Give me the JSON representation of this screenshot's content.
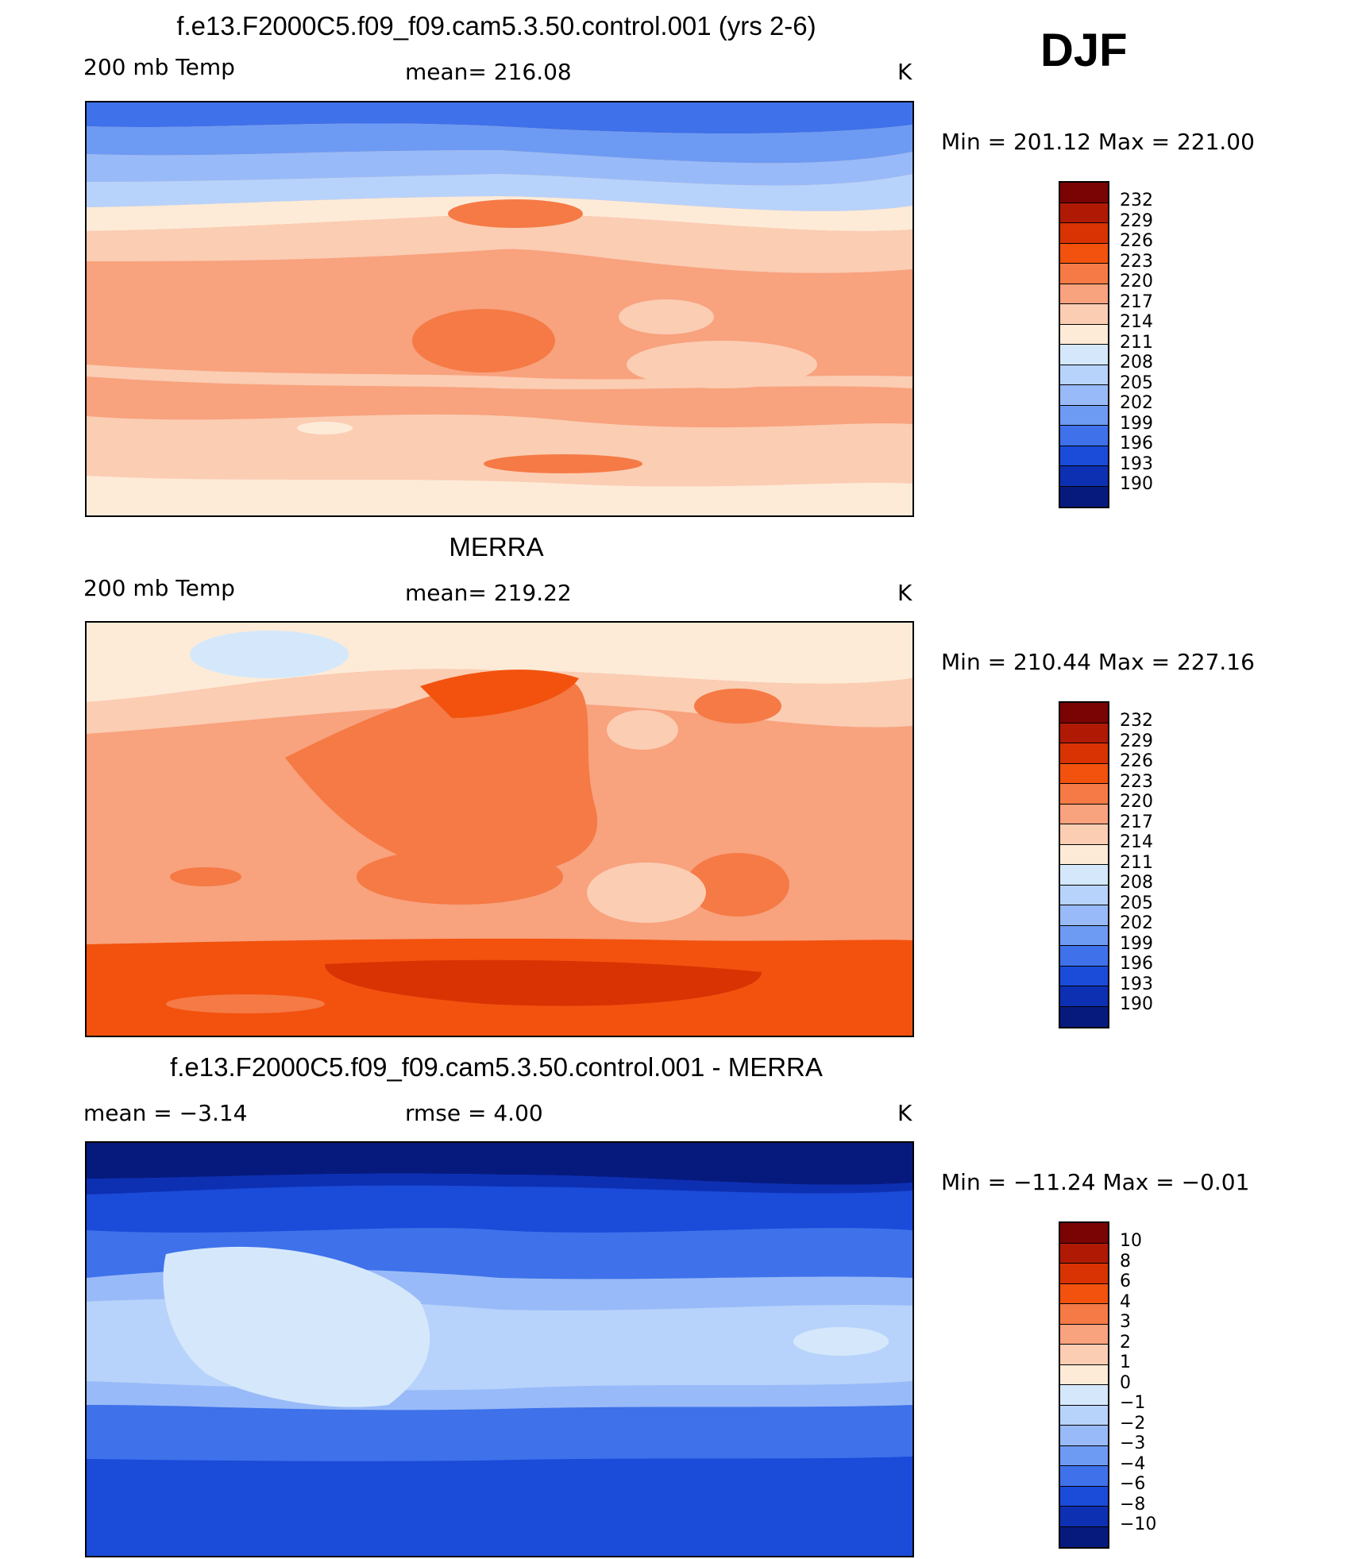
{
  "season": "DJF",
  "units": "K",
  "panels": [
    {
      "title": "f.e13.F2000C5.f09_f09.cam5.3.50.control.001 (yrs 2-6)",
      "left_label": "200 mb Temp",
      "center_label": "mean= 216.08",
      "units": "K",
      "min_max": "Min = 201.12 Max = 221.00",
      "colorbar_levels": [
        "232",
        "229",
        "226",
        "223",
        "220",
        "217",
        "214",
        "211",
        "208",
        "205",
        "202",
        "199",
        "196",
        "193",
        "190"
      ]
    },
    {
      "title": "MERRA",
      "left_label": "200 mb Temp",
      "center_label": "mean= 219.22",
      "units": "K",
      "min_max": "Min = 210.44 Max = 227.16",
      "colorbar_levels": [
        "232",
        "229",
        "226",
        "223",
        "220",
        "217",
        "214",
        "211",
        "208",
        "205",
        "202",
        "199",
        "196",
        "193",
        "190"
      ]
    },
    {
      "title": "f.e13.F2000C5.f09_f09.cam5.3.50.control.001 - MERRA",
      "left_label": "mean =   −3.14",
      "center_label": "rmse =    4.00",
      "units": "K",
      "min_max": "Min = −11.24 Max =  −0.01",
      "colorbar_levels": [
        "10",
        "8",
        "6",
        "4",
        "3",
        "2",
        "1",
        "0",
        "−1",
        "−2",
        "−3",
        "−4",
        "−6",
        "−8",
        "−10"
      ]
    }
  ],
  "colors": {
    "abs_scale": [
      "#7a0403",
      "#b01a05",
      "#d93203",
      "#f2520e",
      "#f57a45",
      "#f8a27e",
      "#fbcdb3",
      "#fdebd8",
      "#d5e8fb",
      "#b8d3fb",
      "#98baf8",
      "#6d9af3",
      "#3e71ea",
      "#1a4bd9",
      "#0d2fb2",
      "#061a7e"
    ],
    "diff_scale": [
      "#7a0403",
      "#b01a05",
      "#d93203",
      "#f2520e",
      "#f57a45",
      "#f8a27e",
      "#fbcdb3",
      "#fdebd8",
      "#d5e8fb",
      "#b8d3fb",
      "#98baf8",
      "#6d9af3",
      "#3e71ea",
      "#1a4bd9",
      "#0d2fb2",
      "#061a7e"
    ]
  }
}
